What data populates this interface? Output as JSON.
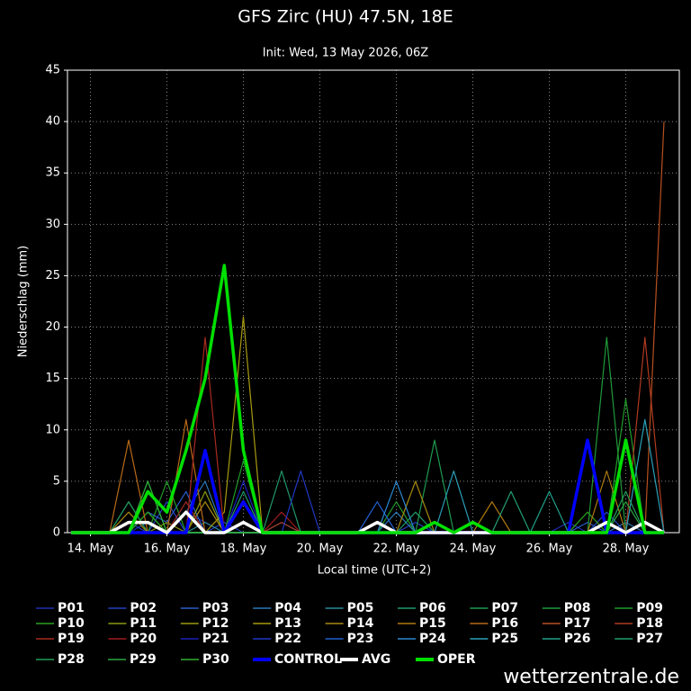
{
  "chart_data": {
    "type": "line",
    "title": "GFS Zirc (HU) 47.5N, 18E",
    "subtitle": "Init: Wed, 13 May 2026, 06Z",
    "y_label": "Niederschlag (mm)",
    "x_label": "Local time (UTC+2)",
    "watermark": "wetterzentrale.de",
    "grid": true,
    "xlim": [
      13.4,
      29.4
    ],
    "xticks": [
      {
        "value": 14,
        "label": "14. May"
      },
      {
        "value": 16,
        "label": "16. May"
      },
      {
        "value": 18,
        "label": "18. May"
      },
      {
        "value": 20,
        "label": "20. May"
      },
      {
        "value": 22,
        "label": "22. May"
      },
      {
        "value": 24,
        "label": "24. May"
      },
      {
        "value": 26,
        "label": "26. May"
      },
      {
        "value": 28,
        "label": "28. May"
      }
    ],
    "ylim": [
      0,
      45
    ],
    "yticks": [
      0,
      5,
      10,
      15,
      20,
      25,
      30,
      35,
      40,
      45
    ],
    "x": [
      13.5,
      14,
      14.5,
      15,
      15.5,
      16,
      16.5,
      17,
      17.5,
      18,
      18.5,
      19,
      19.5,
      20,
      20.5,
      21,
      21.5,
      22,
      22.5,
      23,
      23.5,
      24,
      24.5,
      25,
      25.5,
      26,
      26.5,
      27,
      27.5,
      28,
      28.5,
      29
    ],
    "series": [
      {
        "name": "P01",
        "color": "#1f2fb0",
        "values": [
          0,
          0,
          0,
          0,
          1,
          0,
          2,
          1,
          0,
          0,
          0,
          0,
          0,
          0,
          0,
          0,
          0,
          0,
          0,
          1,
          0,
          0,
          0,
          0,
          0,
          0,
          1,
          0,
          0,
          0,
          0,
          0
        ]
      },
      {
        "name": "P02",
        "color": "#2340c0",
        "values": [
          0,
          0,
          0,
          1,
          0,
          3,
          0,
          0,
          1,
          0,
          0,
          0,
          0,
          0,
          0,
          0,
          0,
          0,
          1,
          0,
          0,
          0,
          0,
          0,
          0,
          0,
          0,
          0,
          2,
          0,
          0,
          0
        ]
      },
      {
        "name": "P03",
        "color": "#2a5cc8",
        "values": [
          0,
          0,
          0,
          0,
          2,
          1,
          4,
          0,
          0,
          0,
          0,
          0,
          0,
          0,
          0,
          0,
          0,
          0,
          0,
          0,
          0,
          0,
          0,
          0,
          0,
          0,
          0,
          1,
          0,
          0,
          0,
          0
        ]
      },
      {
        "name": "P04",
        "color": "#2a78b8",
        "values": [
          0,
          0,
          0,
          3,
          0,
          0,
          2,
          5,
          0,
          0,
          0,
          1,
          0,
          0,
          0,
          0,
          0,
          2,
          0,
          0,
          0,
          0,
          0,
          0,
          0,
          0,
          0,
          0,
          0,
          1,
          0,
          0
        ]
      },
      {
        "name": "P05",
        "color": "#2a8a9a",
        "values": [
          0,
          0,
          0,
          0,
          5,
          0,
          0,
          1,
          0,
          0,
          0,
          0,
          0,
          0,
          0,
          0,
          0,
          0,
          0,
          1,
          0,
          0,
          0,
          0,
          0,
          0,
          0,
          0,
          0,
          0,
          0,
          0
        ]
      },
      {
        "name": "P06",
        "color": "#1f9a6a",
        "values": [
          0,
          0,
          0,
          0,
          0,
          0,
          3,
          0,
          0,
          4,
          0,
          6,
          0,
          0,
          0,
          0,
          0,
          0,
          2,
          0,
          0,
          0,
          0,
          0,
          0,
          0,
          0,
          0,
          0,
          0,
          0,
          0
        ]
      },
      {
        "name": "P07",
        "color": "#1f9a50",
        "values": [
          0,
          0,
          0,
          3,
          0,
          0,
          0,
          0,
          0,
          0,
          0,
          0,
          0,
          0,
          0,
          0,
          0,
          0,
          0,
          9,
          0,
          0,
          0,
          0,
          0,
          0,
          0,
          0,
          0,
          0,
          0,
          0
        ]
      },
      {
        "name": "P08",
        "color": "#1f9a3a",
        "values": [
          0,
          0,
          0,
          0,
          2,
          0,
          0,
          8,
          0,
          0,
          0,
          0,
          0,
          0,
          0,
          0,
          0,
          0,
          0,
          0,
          0,
          0,
          0,
          0,
          0,
          0,
          0,
          0,
          19,
          0,
          0,
          0
        ]
      },
      {
        "name": "P09",
        "color": "#209a2a",
        "values": [
          0,
          0,
          0,
          0,
          0,
          5,
          0,
          0,
          0,
          7,
          0,
          0,
          0,
          0,
          0,
          0,
          0,
          3,
          0,
          0,
          0,
          0,
          0,
          0,
          0,
          0,
          0,
          0,
          0,
          13,
          0,
          0
        ]
      },
      {
        "name": "P10",
        "color": "#2aa020",
        "values": [
          0,
          0,
          0,
          0,
          2,
          0,
          0,
          0,
          0,
          0,
          0,
          0,
          0,
          0,
          0,
          0,
          0,
          0,
          0,
          0,
          0,
          0,
          0,
          0,
          0,
          0,
          0,
          2,
          0,
          0,
          0,
          0
        ]
      },
      {
        "name": "P11",
        "color": "#8a9a10",
        "values": [
          0,
          0,
          0,
          0,
          0,
          1,
          0,
          4,
          0,
          0,
          0,
          0,
          0,
          0,
          0,
          0,
          0,
          0,
          0,
          0,
          0,
          0,
          0,
          0,
          0,
          0,
          0,
          0,
          0,
          0,
          0,
          0
        ]
      },
      {
        "name": "P12",
        "color": "#9a9a10",
        "values": [
          0,
          0,
          0,
          0,
          0,
          0,
          0,
          8,
          0,
          0,
          0,
          0,
          0,
          0,
          0,
          0,
          0,
          0,
          0,
          0,
          0,
          0,
          0,
          0,
          0,
          0,
          0,
          0,
          0,
          0,
          0,
          0
        ]
      },
      {
        "name": "P13",
        "color": "#a89a10",
        "values": [
          0,
          0,
          0,
          0,
          0,
          0,
          0,
          0,
          2,
          21,
          0,
          0,
          0,
          0,
          0,
          0,
          0,
          0,
          0,
          0,
          0,
          0,
          0,
          0,
          0,
          0,
          0,
          0,
          0,
          0,
          0,
          0
        ]
      },
      {
        "name": "P14",
        "color": "#a88a10",
        "values": [
          0,
          0,
          0,
          2,
          0,
          0,
          0,
          3,
          0,
          0,
          0,
          0,
          0,
          0,
          0,
          0,
          0,
          0,
          5,
          0,
          0,
          0,
          0,
          0,
          0,
          0,
          0,
          0,
          0,
          0,
          0,
          0
        ]
      },
      {
        "name": "P15",
        "color": "#b07a10",
        "values": [
          0,
          0,
          0,
          0,
          0,
          0,
          0,
          0,
          0,
          0,
          0,
          0,
          0,
          0,
          0,
          0,
          0,
          0,
          0,
          0,
          0,
          0,
          3,
          0,
          0,
          0,
          0,
          0,
          6,
          0,
          0,
          0
        ]
      },
      {
        "name": "P16",
        "color": "#b86a18",
        "values": [
          0,
          0,
          0,
          9,
          0,
          0,
          11,
          0,
          0,
          0,
          0,
          0,
          0,
          0,
          0,
          0,
          0,
          0,
          0,
          0,
          0,
          0,
          0,
          0,
          0,
          0,
          0,
          0,
          0,
          0,
          0,
          0
        ]
      },
      {
        "name": "P17",
        "color": "#b85020",
        "values": [
          0,
          0,
          0,
          0,
          0,
          0,
          0,
          0,
          0,
          0,
          0,
          0,
          0,
          0,
          0,
          0,
          0,
          0,
          0,
          0,
          0,
          0,
          0,
          0,
          0,
          0,
          0,
          0,
          0,
          0,
          0,
          40
        ]
      },
      {
        "name": "P18",
        "color": "#b03a20",
        "values": [
          0,
          0,
          0,
          0,
          0,
          0,
          0,
          0,
          0,
          0,
          0,
          1,
          0,
          0,
          0,
          0,
          0,
          0,
          0,
          0,
          0,
          0,
          0,
          0,
          0,
          0,
          0,
          0,
          0,
          0,
          19,
          0
        ]
      },
      {
        "name": "P19",
        "color": "#a82a20",
        "values": [
          0,
          0,
          0,
          0,
          0,
          0,
          0,
          19,
          0,
          0,
          0,
          0,
          0,
          0,
          0,
          0,
          0,
          0,
          0,
          0,
          0,
          0,
          0,
          0,
          0,
          0,
          0,
          0,
          0,
          0,
          0,
          0
        ]
      },
      {
        "name": "P20",
        "color": "#a01a20",
        "values": [
          0,
          0,
          0,
          0,
          0,
          0,
          3,
          0,
          0,
          0,
          0,
          2,
          0,
          0,
          0,
          0,
          0,
          0,
          0,
          0,
          0,
          0,
          0,
          0,
          0,
          0,
          0,
          0,
          0,
          0,
          0,
          0
        ]
      },
      {
        "name": "P21",
        "color": "#1a20b8",
        "values": [
          0,
          0,
          0,
          0,
          0,
          0,
          0,
          0,
          0,
          5,
          0,
          0,
          0,
          0,
          0,
          0,
          0,
          0,
          0,
          0,
          0,
          0,
          0,
          0,
          0,
          0,
          0,
          0,
          0,
          0,
          0,
          0
        ]
      },
      {
        "name": "P22",
        "color": "#2038c8",
        "values": [
          0,
          0,
          0,
          0,
          0,
          0,
          0,
          0,
          0,
          0,
          0,
          0,
          6,
          0,
          0,
          0,
          0,
          0,
          0,
          0,
          0,
          0,
          0,
          0,
          0,
          0,
          0,
          0,
          0,
          0,
          0,
          0
        ]
      },
      {
        "name": "P23",
        "color": "#2060d0",
        "values": [
          0,
          0,
          0,
          0,
          0,
          0,
          0,
          0,
          0,
          0,
          0,
          0,
          0,
          0,
          0,
          0,
          3,
          0,
          0,
          0,
          0,
          0,
          0,
          0,
          0,
          0,
          0,
          0,
          0,
          0,
          0,
          0
        ]
      },
      {
        "name": "P24",
        "color": "#2a88d0",
        "values": [
          0,
          0,
          0,
          0,
          0,
          0,
          0,
          0,
          0,
          0,
          0,
          0,
          0,
          0,
          0,
          0,
          0,
          5,
          0,
          0,
          0,
          0,
          0,
          0,
          0,
          0,
          0,
          0,
          0,
          0,
          0,
          0
        ]
      },
      {
        "name": "P25",
        "color": "#2aa0b8",
        "values": [
          0,
          0,
          0,
          0,
          0,
          0,
          0,
          0,
          0,
          0,
          0,
          0,
          0,
          0,
          0,
          0,
          0,
          0,
          0,
          0,
          6,
          0,
          0,
          0,
          0,
          0,
          0,
          0,
          0,
          0,
          11,
          0
        ]
      },
      {
        "name": "P26",
        "color": "#20a08a",
        "values": [
          0,
          0,
          0,
          0,
          0,
          0,
          0,
          0,
          0,
          0,
          0,
          0,
          0,
          0,
          0,
          0,
          0,
          0,
          0,
          0,
          0,
          0,
          0,
          0,
          0,
          4,
          0,
          0,
          0,
          0,
          0,
          0
        ]
      },
      {
        "name": "P27",
        "color": "#20a070",
        "values": [
          0,
          0,
          0,
          0,
          0,
          0,
          0,
          0,
          0,
          0,
          0,
          0,
          0,
          0,
          0,
          0,
          0,
          0,
          0,
          0,
          0,
          0,
          0,
          4,
          0,
          0,
          0,
          0,
          0,
          0,
          0,
          0
        ]
      },
      {
        "name": "P28",
        "color": "#20a058",
        "values": [
          0,
          0,
          0,
          0,
          0,
          0,
          0,
          0,
          0,
          0,
          0,
          0,
          0,
          0,
          0,
          0,
          0,
          0,
          0,
          0,
          0,
          0,
          0,
          0,
          0,
          0,
          0,
          0,
          0,
          4,
          0,
          0
        ]
      },
      {
        "name": "P29",
        "color": "#28a840",
        "values": [
          0,
          0,
          0,
          0,
          0,
          0,
          0,
          0,
          0,
          0,
          0,
          0,
          0,
          0,
          0,
          0,
          0,
          0,
          0,
          0,
          0,
          0,
          0,
          0,
          0,
          0,
          0,
          0,
          0,
          3,
          0,
          0
        ]
      },
      {
        "name": "P30",
        "color": "#30b030",
        "values": [
          0,
          0,
          0,
          0,
          5,
          0,
          0,
          0,
          0,
          0,
          0,
          0,
          0,
          0,
          0,
          0,
          0,
          0,
          0,
          0,
          0,
          0,
          0,
          0,
          0,
          0,
          0,
          0,
          0,
          0,
          0,
          0
        ]
      },
      {
        "name": "CONTROL",
        "color": "#0000ff",
        "values": [
          0,
          0,
          0,
          0,
          0,
          0,
          0,
          8,
          0,
          3,
          0,
          0,
          0,
          0,
          0,
          0,
          0,
          0,
          0,
          0,
          0,
          0,
          0,
          0,
          0,
          0,
          0,
          9,
          0,
          0,
          0,
          0
        ]
      },
      {
        "name": "AVG",
        "color": "#ffffff",
        "values": [
          0,
          0,
          0,
          1,
          1,
          0,
          2,
          0,
          0,
          1,
          0,
          0,
          0,
          0,
          0,
          0,
          1,
          0,
          0,
          0,
          0,
          0,
          0,
          0,
          0,
          0,
          0,
          0,
          1,
          0,
          1,
          0
        ]
      },
      {
        "name": "OPER",
        "color": "#00e000",
        "values": [
          0,
          0,
          0,
          0,
          4,
          2,
          8,
          15,
          26,
          8,
          0,
          0,
          0,
          0,
          0,
          0,
          0,
          0,
          0,
          1,
          0,
          1,
          0,
          0,
          0,
          0,
          0,
          0,
          0,
          9,
          0,
          0
        ]
      }
    ]
  }
}
